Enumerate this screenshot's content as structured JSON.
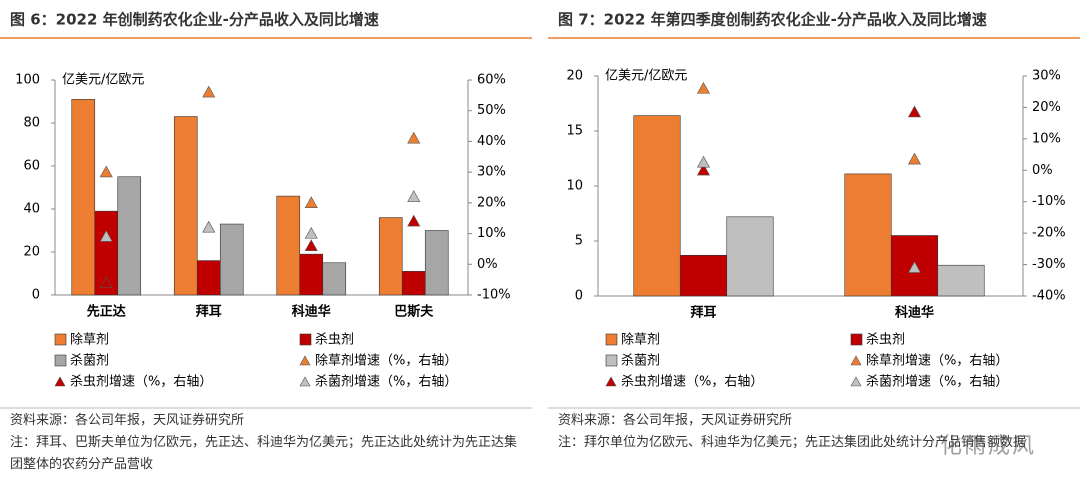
{
  "chart_data": [
    {
      "type": "bar",
      "title": "图 6：2022 年创制药农化企业-分产品收入及同比增速",
      "y_unit": "亿美元/亿欧元",
      "categories": [
        "先正达",
        "拜耳",
        "科迪华",
        "巴斯夫"
      ],
      "series": [
        {
          "name": "除草剂",
          "color": "#ED7D31",
          "values": [
            91,
            83,
            46,
            36
          ]
        },
        {
          "name": "杀虫剂",
          "color": "#C00000",
          "values": [
            39,
            16,
            19,
            11
          ]
        },
        {
          "name": "杀菌剂",
          "color": "#A6A6A6",
          "values": [
            55,
            33,
            15,
            30
          ]
        },
        {
          "name": "除草剂增速（%，右轴）",
          "color": "#ED7D31",
          "axis": "y2",
          "marker": "triangle",
          "values": [
            30,
            56,
            20,
            41
          ]
        },
        {
          "name": "杀虫剂增速（%，右轴）",
          "color": "#C00000",
          "axis": "y2",
          "marker": "triangle",
          "values": [
            -6,
            null,
            6,
            14
          ]
        },
        {
          "name": "杀菌剂增速（%，右轴）",
          "color": "#BFBFBF",
          "axis": "y2",
          "marker": "triangle",
          "values": [
            9,
            12,
            10,
            22
          ]
        }
      ],
      "ylim": [
        0,
        100
      ],
      "yticks": [
        0,
        20,
        40,
        60,
        80,
        100
      ],
      "y2lim": [
        -10,
        60
      ],
      "y2ticks": [
        {
          "value": -10,
          "label": "-10%"
        },
        {
          "value": 0,
          "label": "0%"
        },
        {
          "value": 10,
          "label": "10%"
        },
        {
          "value": 20,
          "label": "20%"
        },
        {
          "value": 30,
          "label": "30%"
        },
        {
          "value": 40,
          "label": "40%"
        },
        {
          "value": 50,
          "label": "50%"
        },
        {
          "value": 60,
          "label": "60%"
        }
      ],
      "source": "资料来源：各公司年报，天风证券研究所",
      "notes": "注：拜耳、巴斯夫单位为亿欧元，先正达、科迪华为亿美元；先正达此处统计为先正达集团整体的农药分产品营收"
    },
    {
      "type": "bar",
      "title": "图 7：2022 年第四季度创制药农化企业-分产品收入及同比增速",
      "y_unit": "亿美元/亿欧元",
      "categories": [
        "拜耳",
        "科迪华"
      ],
      "series": [
        {
          "name": "除草剂",
          "color": "#ED7D31",
          "values": [
            16.4,
            11.1
          ]
        },
        {
          "name": "杀虫剂",
          "color": "#C00000",
          "values": [
            3.7,
            5.5
          ]
        },
        {
          "name": "杀菌剂",
          "color": "#BFBFBF",
          "values": [
            7.2,
            2.8
          ]
        },
        {
          "name": "除草剂增速（%，右轴）",
          "color": "#ED7D31",
          "axis": "y2",
          "marker": "triangle",
          "values": [
            26,
            3.5
          ]
        },
        {
          "name": "杀虫剂增速（%，右轴）",
          "color": "#C00000",
          "axis": "y2",
          "marker": "triangle",
          "values": [
            0,
            18.5
          ]
        },
        {
          "name": "杀菌剂增速（%，右轴）",
          "color": "#BFBFBF",
          "axis": "y2",
          "marker": "triangle",
          "values": [
            2.5,
            -31
          ]
        }
      ],
      "ylim": [
        0,
        20
      ],
      "yticks": [
        0,
        5,
        10,
        15,
        20
      ],
      "y2lim": [
        -40,
        30
      ],
      "y2ticks": [
        {
          "value": -40,
          "label": "-40%"
        },
        {
          "value": -30,
          "label": "-30%"
        },
        {
          "value": -20,
          "label": "-20%"
        },
        {
          "value": -10,
          "label": "-10%"
        },
        {
          "value": 0,
          "label": "0%"
        },
        {
          "value": 10,
          "label": "10%"
        },
        {
          "value": 20,
          "label": "20%"
        },
        {
          "value": 30,
          "label": "30%"
        }
      ],
      "source": "资料来源：各公司年报，天风证券研究所",
      "notes": "注：拜尔单位为亿欧元、科迪华为亿美元；先正达集团此处统计分产品销售额数据"
    }
  ],
  "watermark": "化雨成风"
}
